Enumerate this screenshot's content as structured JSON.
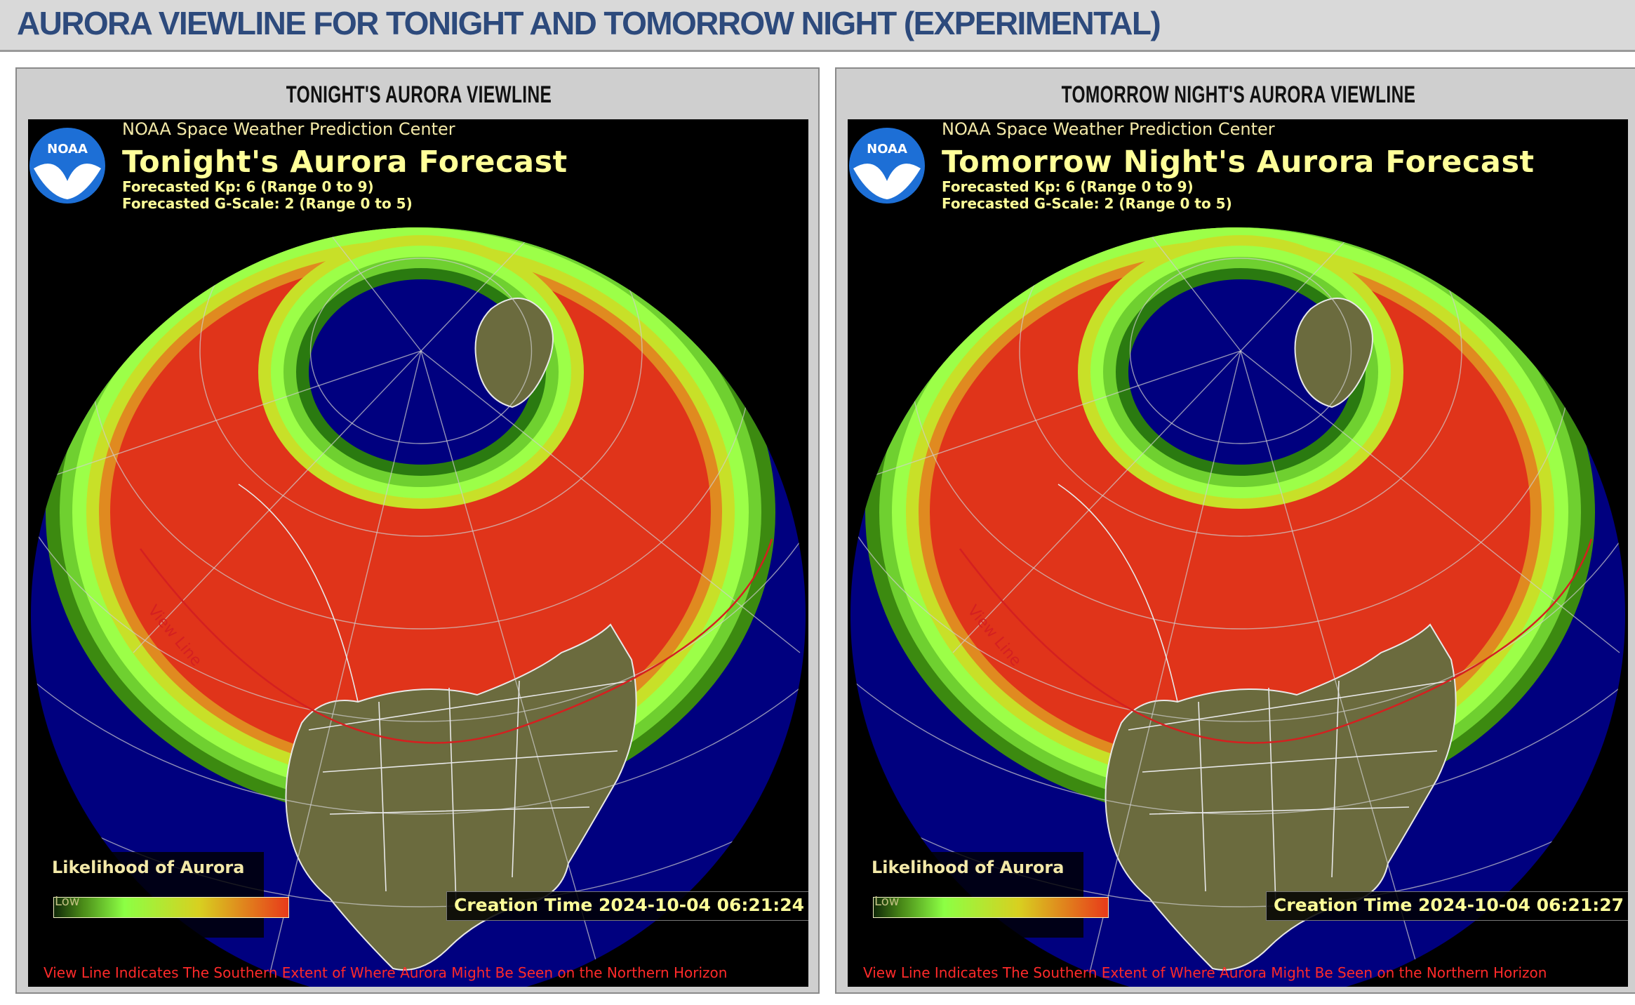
{
  "header": {
    "title": "AURORA VIEWLINE FOR TONIGHT AND TOMORROW NIGHT (EXPERIMENTAL)"
  },
  "colors": {
    "header_title": "#2d4a7c",
    "ocean": "#00007f",
    "land": "#6b6b3e",
    "aurora_high": "#e0341a",
    "aurora_low": "#8cff44",
    "view_line": "#d42020",
    "map_text": "#ffff99"
  },
  "panels": [
    {
      "heading": "TONIGHT'S AURORA VIEWLINE",
      "source": "NOAA Space Weather Prediction Center",
      "forecast_title": "Tonight's Aurora Forecast",
      "kp_text": "Forecasted Kp: 6 (Range 0 to 9)",
      "gscale_text": "Forecasted G-Scale: 2 (Range 0 to 5)",
      "logo_text": "NOAA",
      "logo_icon": "noaa-logo-icon",
      "legend_title": "Likelihood of Aurora",
      "legend_low": "Low",
      "creation_time": "Creation Time 2024-10-04 06:21:24",
      "view_line_label": "View Line",
      "footnote": "View Line Indicates The Southern Extent of Where Aurora Might Be Seen on the Northern Horizon"
    },
    {
      "heading": "TOMORROW NIGHT'S AURORA VIEWLINE",
      "source": "NOAA Space Weather Prediction Center",
      "forecast_title": "Tomorrow Night's Aurora Forecast",
      "kp_text": "Forecasted Kp: 6 (Range 0 to 9)",
      "gscale_text": "Forecasted G-Scale: 2 (Range 0 to 5)",
      "logo_text": "NOAA",
      "logo_icon": "noaa-logo-icon",
      "legend_title": "Likelihood of Aurora",
      "legend_low": "Low",
      "creation_time": "Creation Time 2024-10-04 06:21:27",
      "view_line_label": "View Line",
      "footnote": "View Line Indicates The Southern Extent of Where Aurora Might Be Seen on the Northern Horizon"
    }
  ]
}
